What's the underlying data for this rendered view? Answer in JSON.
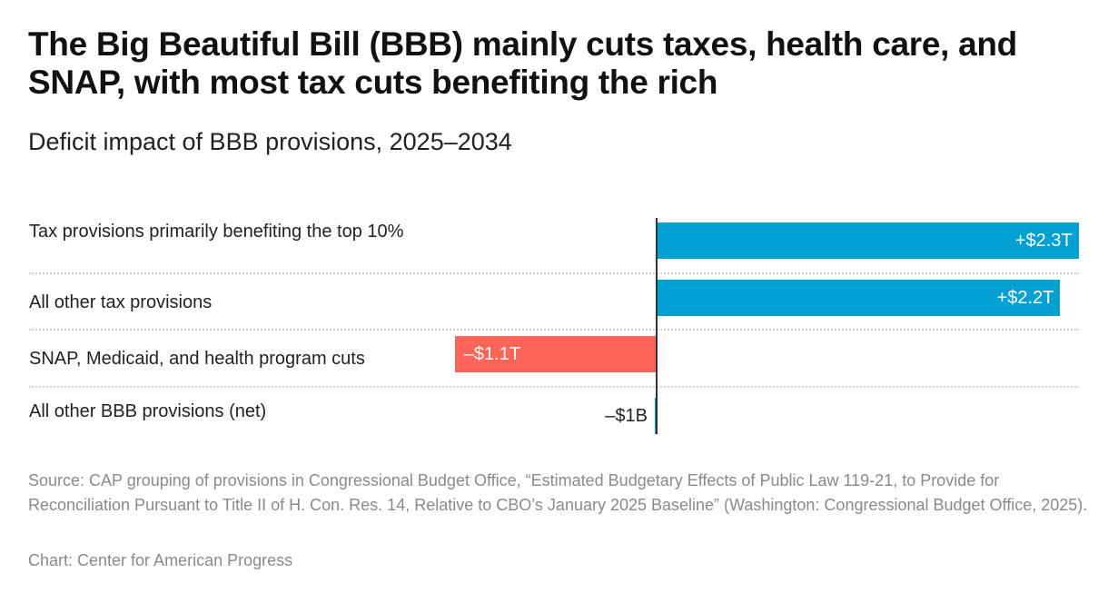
{
  "title": "The Big Beautiful Bill (BBB) mainly cuts taxes, health care, and SNAP, with most tax cuts benefiting the rich",
  "subtitle": "Deficit impact of BBB provisions, 2025–2034",
  "chart_data": {
    "type": "bar",
    "orientation": "horizontal",
    "categories": [
      "Tax provisions primarily benefiting the top 10%",
      "All other tax provisions",
      "SNAP, Medicaid, and health program cuts",
      "All other BBB provisions (net)"
    ],
    "values": [
      2.3,
      2.2,
      -1.1,
      -0.001
    ],
    "unit": "trillion USD",
    "data_labels": [
      "+$2.3T",
      "+$2.2T",
      "–$1.1T",
      "–$1B"
    ],
    "bar_colors": [
      "#00a0d2",
      "#00a0d2",
      "#ff6459",
      "#00a0d2"
    ],
    "grid": false
  },
  "source": "Source: CAP grouping of provisions in Congressional Budget Office, “Estimated Budgetary Effects of Public Law 119-21, to Provide for Reconciliation Pursuant to Title II of H. Con. Res. 14, Relative to CBO’s January 2025 Baseline” (Washington: Congressional Budget Office, 2025).",
  "credit": "Chart: Center for American Progress"
}
